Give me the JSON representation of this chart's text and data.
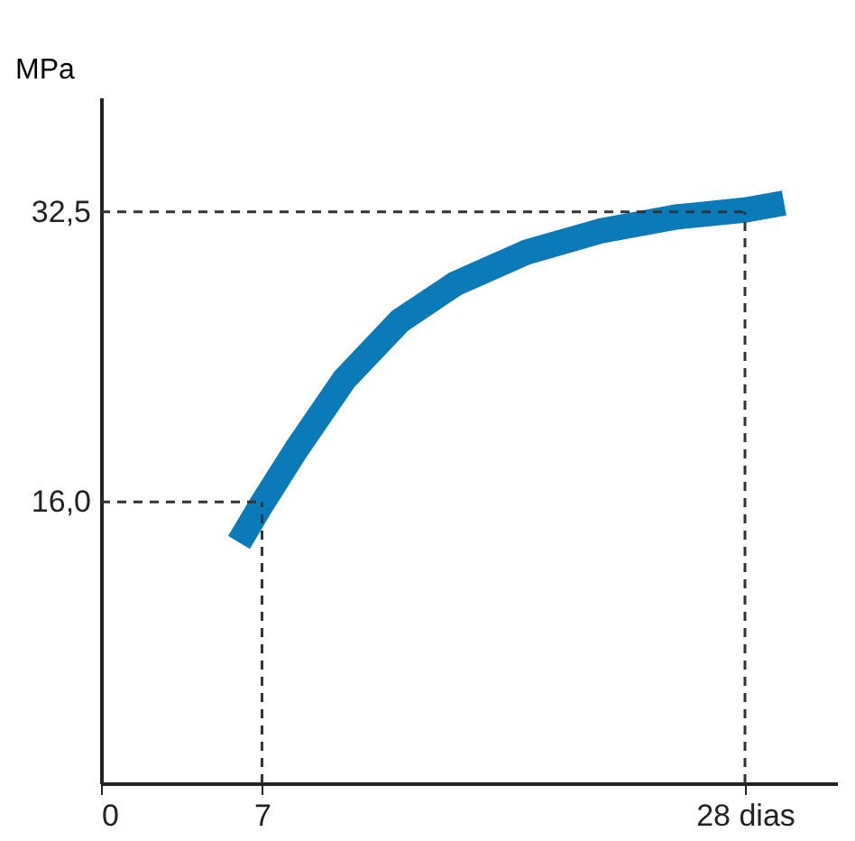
{
  "chart_data": {
    "type": "line",
    "ylabel": "MPa",
    "x": [
      6,
      7,
      8.5,
      10.6,
      13,
      15.4,
      18.5,
      21.7,
      25,
      28,
      29.7
    ],
    "series": [
      {
        "color": "#0a7ab8",
        "values": [
          13.7,
          15.9,
          19,
          23,
          26.3,
          28.4,
          30.2,
          31.4,
          32.2,
          32.6,
          33.0
        ]
      }
    ],
    "xlim": [
      0,
      32
    ],
    "ylim": [
      0,
      39
    ],
    "xticks": [
      0,
      7,
      {
        "value": 28,
        "label": "28 dias"
      }
    ],
    "yticks": [
      {
        "value": 16,
        "label": "16,0"
      },
      {
        "value": 32.5,
        "label": "32,5"
      }
    ],
    "ref_lines": [
      {
        "axis": "y",
        "value": 16,
        "color": "#333333",
        "line_style": "dashed"
      },
      {
        "axis": "y",
        "value": 32.5,
        "color": "#333333",
        "line_style": "dashed"
      },
      {
        "axis": "x",
        "value": 7,
        "color": "#333333",
        "line_style": "dashed"
      },
      {
        "axis": "x",
        "value": 28,
        "color": "#333333",
        "line_style": "dashed"
      }
    ],
    "grid": false,
    "legend": false,
    "marker": "none",
    "line_style": "solid"
  }
}
